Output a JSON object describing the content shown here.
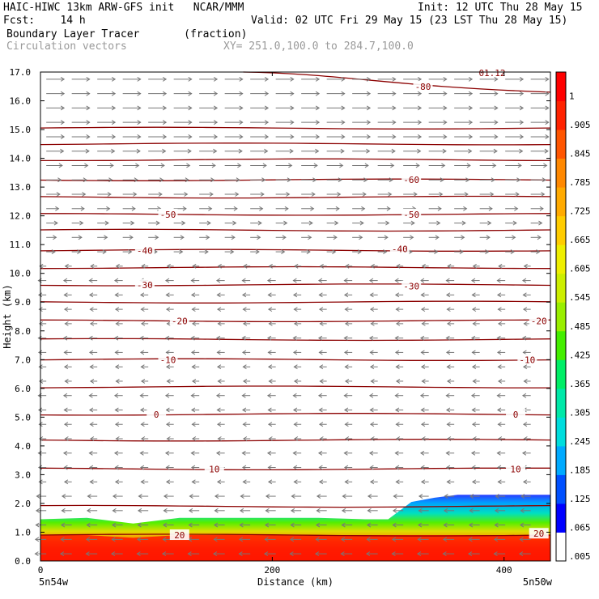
{
  "header": {
    "title": "HAIC-HIWC 13km ARW-GFS init   NCAR/MMM",
    "fcst": "Fcst:    14 h",
    "init": "Init: 12 UTC Thu 28 May 15",
    "valid": "Valid: 02 UTC Fri 29 May 15 (23 LST Thu 28 May 15)",
    "field": "Boundary Layer Tracer       (fraction)",
    "vectors_label": "Circulation vectors",
    "xy_range": "XY= 251.0,100.0 to 284.7,100.0",
    "corner_partial": "01.12"
  },
  "chart_data": {
    "type": "heatmap",
    "xlabel": "Distance (km)",
    "ylabel": "Height (km)",
    "xlim": [
      0,
      440
    ],
    "ylim": [
      0,
      17
    ],
    "x_ticks": [
      0,
      200,
      400
    ],
    "y_ticks": [
      "0.0",
      "1.0",
      "2.0",
      "3.0",
      "4.0",
      "5.0",
      "6.0",
      "7.0",
      "8.0",
      "9.0",
      "10.0",
      "11.0",
      "12.0",
      "13.0",
      "14.0",
      "15.0",
      "16.0",
      "17.0"
    ],
    "x_end_labels": {
      "left": "5n54w",
      "right": "5n50w"
    },
    "colorbar": {
      "labels": [
        ".005",
        ".065",
        ".125",
        ".185",
        ".245",
        ".305",
        ".365",
        ".425",
        ".485",
        ".545",
        ".605",
        ".665",
        ".725",
        ".785",
        ".845",
        ".905",
        "1"
      ],
      "colors": [
        "#ffffff",
        "#0000ff",
        "#0050ff",
        "#00aaff",
        "#00dddd",
        "#00e8a8",
        "#00ee66",
        "#44ee00",
        "#99ee00",
        "#ccee00",
        "#eeee00",
        "#ffcc00",
        "#ffaa00",
        "#ff8800",
        "#ff5500",
        "#ff2200",
        "#ff0000"
      ]
    },
    "temperature_contours": {
      "color": "#8b0000",
      "labeled": [
        {
          "value": "20",
          "km": 120,
          "h": 0.9
        },
        {
          "value": "20",
          "km": 430,
          "h": 0.95
        },
        {
          "value": "10",
          "km": 150,
          "h": 3.2
        },
        {
          "value": "10",
          "km": 410,
          "h": 3.2
        },
        {
          "value": "0",
          "km": 100,
          "h": 5.1
        },
        {
          "value": "0",
          "km": 410,
          "h": 5.1
        },
        {
          "value": "-10",
          "km": 110,
          "h": 7.0
        },
        {
          "value": "-10",
          "km": 420,
          "h": 7.0
        },
        {
          "value": "-20",
          "km": 120,
          "h": 8.35
        },
        {
          "value": "-20",
          "km": 430,
          "h": 8.35
        },
        {
          "value": "-30",
          "km": 90,
          "h": 9.6
        },
        {
          "value": "-30",
          "km": 320,
          "h": 9.55
        },
        {
          "value": "-40",
          "km": 90,
          "h": 10.8
        },
        {
          "value": "-40",
          "km": 310,
          "h": 10.85
        },
        {
          "value": "-50",
          "km": 110,
          "h": 12.05
        },
        {
          "value": "-50",
          "km": 320,
          "h": 12.05
        },
        {
          "value": "-60",
          "km": 320,
          "h": 13.25
        },
        {
          "value": "-80",
          "km": 330,
          "h": 16.5
        }
      ],
      "levels_km": [
        0.9,
        1.9,
        3.2,
        4.2,
        5.1,
        6.05,
        7.0,
        7.7,
        8.35,
        9.0,
        9.6,
        10.2,
        10.8,
        11.5,
        12.05,
        12.65,
        13.25,
        13.95,
        14.5,
        15.05
      ]
    },
    "tracer_boundary": {
      "profile_km": [
        0,
        40,
        80,
        120,
        160,
        200,
        240,
        280,
        300,
        320,
        340,
        360,
        380,
        400,
        420,
        440
      ],
      "top_height_km": [
        1.45,
        1.5,
        1.3,
        1.5,
        1.5,
        1.5,
        1.5,
        1.45,
        1.45,
        2.05,
        2.2,
        2.3,
        2.3,
        2.3,
        2.3,
        2.3
      ]
    },
    "wind": {
      "upper_direction": "east",
      "lower_direction": "west",
      "reversal_height_km": 10.5
    }
  }
}
